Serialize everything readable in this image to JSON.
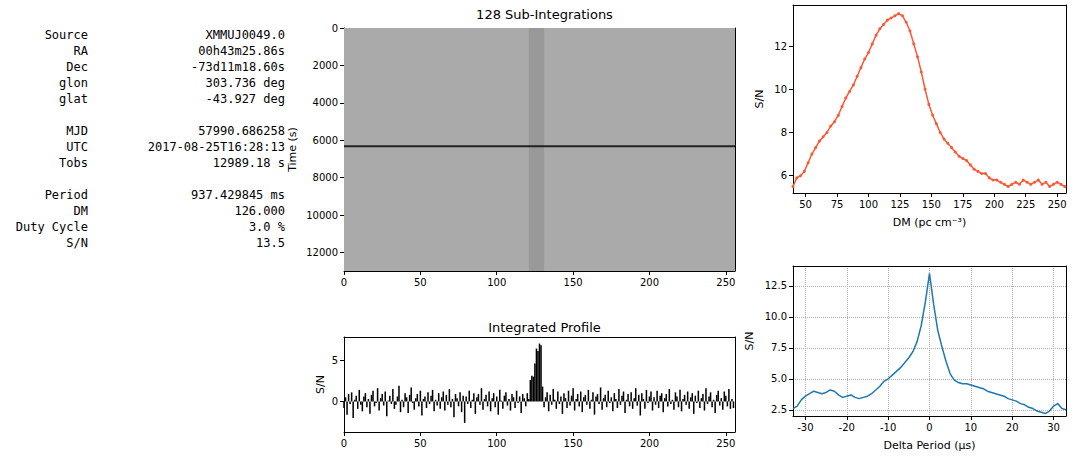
{
  "info": [
    [
      {
        "label": "Source",
        "value": "XMMUJ0049.0"
      },
      {
        "label": "RA",
        "value": "00h43m25.86s"
      },
      {
        "label": "Dec",
        "value": "-73d11m18.60s"
      },
      {
        "label": "glon",
        "value": "303.736 deg"
      },
      {
        "label": "glat",
        "value": "-43.927 deg"
      }
    ],
    [
      {
        "label": "MJD",
        "value": "57990.686258"
      },
      {
        "label": "UTC",
        "value": "2017-08-25T16:28:13"
      },
      {
        "label": "Tobs",
        "value": "12989.18 s"
      }
    ],
    [
      {
        "label": "Period",
        "value": "937.429845 ms"
      },
      {
        "label": "DM",
        "value": "126.000"
      },
      {
        "label": "Duty Cycle",
        "value": "3.0 %"
      },
      {
        "label": "S/N",
        "value": "13.5"
      }
    ]
  ],
  "chart_data": [
    {
      "type": "heatmap",
      "title": "128 Sub-Integrations",
      "y_label": "Time (s)",
      "xlim": [
        0,
        256
      ],
      "xticks": [
        0,
        50,
        100,
        150,
        200,
        250
      ],
      "ylim": [
        12989.18,
        0
      ],
      "yticks": [
        0,
        2000,
        4000,
        6000,
        8000,
        10000,
        12000
      ],
      "clim": [
        -2,
        4
      ],
      "cells": [
        {
          "x": [
            0,
            256
          ],
          "y": [
            0,
            12989.18
          ],
          "value": 0
        },
        {
          "x": [
            121,
            131
          ],
          "y": [
            0,
            12989.18
          ],
          "value": 0.4
        },
        {
          "x": [
            0,
            256
          ],
          "y": [
            6270,
            6370
          ],
          "value": 3.2
        }
      ],
      "grid": false
    },
    {
      "type": "bar",
      "title": "Integrated Profile",
      "y_label": "S/N",
      "x": [
        0,
        1,
        2,
        3,
        4,
        5,
        6,
        7,
        8,
        9,
        10,
        11,
        12,
        13,
        14,
        15,
        16,
        17,
        18,
        19,
        20,
        21,
        22,
        23,
        24,
        25,
        26,
        27,
        28,
        29,
        30,
        31,
        32,
        33,
        34,
        35,
        36,
        37,
        38,
        39,
        40,
        41,
        42,
        43,
        44,
        45,
        46,
        47,
        48,
        49,
        50,
        51,
        52,
        53,
        54,
        55,
        56,
        57,
        58,
        59,
        60,
        61,
        62,
        63,
        64,
        65,
        66,
        67,
        68,
        69,
        70,
        71,
        72,
        73,
        74,
        75,
        76,
        77,
        78,
        79,
        80,
        81,
        82,
        83,
        84,
        85,
        86,
        87,
        88,
        89,
        90,
        91,
        92,
        93,
        94,
        95,
        96,
        97,
        98,
        99,
        100,
        101,
        102,
        103,
        104,
        105,
        106,
        107,
        108,
        109,
        110,
        111,
        112,
        113,
        114,
        115,
        116,
        117,
        118,
        119,
        120,
        121,
        122,
        123,
        124,
        125,
        126,
        127,
        128,
        129,
        130,
        131,
        132,
        133,
        134,
        135,
        136,
        137,
        138,
        139,
        140,
        141,
        142,
        143,
        144,
        145,
        146,
        147,
        148,
        149,
        150,
        151,
        152,
        153,
        154,
        155,
        156,
        157,
        158,
        159,
        160,
        161,
        162,
        163,
        164,
        165,
        166,
        167,
        168,
        169,
        170,
        171,
        172,
        173,
        174,
        175,
        176,
        177,
        178,
        179,
        180,
        181,
        182,
        183,
        184,
        185,
        186,
        187,
        188,
        189,
        190,
        191,
        192,
        193,
        194,
        195,
        196,
        197,
        198,
        199,
        200,
        201,
        202,
        203,
        204,
        205,
        206,
        207,
        208,
        209,
        210,
        211,
        212,
        213,
        214,
        215,
        216,
        217,
        218,
        219,
        220,
        221,
        222,
        223,
        224,
        225,
        226,
        227,
        228,
        229,
        230,
        231,
        232,
        233,
        234,
        235,
        236,
        237,
        238,
        239,
        240,
        241,
        242,
        243,
        244,
        245,
        246,
        247,
        248,
        249,
        250,
        251,
        252,
        253,
        254,
        255
      ],
      "values": [
        -0.8,
        0.5,
        -1.6,
        0.9,
        -0.3,
        1.1,
        -2.0,
        0.2,
        0.7,
        -0.9,
        1.4,
        -0.4,
        -1.2,
        0.6,
        1.0,
        -0.7,
        0.3,
        -1.5,
        0.8,
        1.3,
        -0.6,
        -0.2,
        1.6,
        -1.1,
        0.4,
        0.9,
        -0.5,
        1.2,
        -1.8,
        0.1,
        0.7,
        -0.3,
        1.5,
        -0.9,
        -0.4,
        0.6,
        1.9,
        -1.3,
        0.2,
        -0.7,
        1.0,
        0.5,
        -1.4,
        0.8,
        1.7,
        -0.2,
        -1.0,
        0.4,
        0.9,
        -0.6,
        1.3,
        -1.7,
        0.3,
        0.6,
        -0.8,
        1.1,
        -0.3,
        0.7,
        1.4,
        -1.2,
        0.2,
        -0.5,
        1.0,
        -0.9,
        0.5,
        1.2,
        -1.1,
        0.8,
        -0.4,
        1.5,
        -0.7,
        0.3,
        -1.9,
        0.9,
        0.4,
        -0.6,
        1.1,
        -1.3,
        0.7,
        -2.6,
        0.6,
        -0.3,
        1.3,
        -0.8,
        0.2,
        1.0,
        -1.5,
        0.5,
        0.9,
        -0.4,
        1.6,
        -1.0,
        0.3,
        0.8,
        -0.6,
        1.2,
        -1.2,
        0.4,
        1.0,
        -0.7,
        0.6,
        -1.6,
        1.4,
        0.1,
        -0.9,
        0.7,
        1.1,
        -0.5,
        0.3,
        -1.1,
        0.9,
        0.5,
        -0.8,
        1.3,
        -0.2,
        0.6,
        -1.4,
        0.9,
        0.4,
        -0.6,
        1.0,
        0.3,
        2.6,
        3.1,
        3.0,
        4.6,
        6.4,
        6.1,
        7.0,
        6.8,
        1.8,
        -0.7,
        0.5,
        1.1,
        -1.2,
        0.8,
        -0.4,
        1.5,
        0.2,
        -0.9,
        1.2,
        -0.3,
        0.6,
        -1.5,
        1.0,
        0.4,
        -0.8,
        1.3,
        -0.5,
        0.7,
        1.6,
        -1.1,
        0.3,
        0.9,
        -0.6,
        1.2,
        -1.3,
        0.5,
        0.8,
        -0.4,
        1.4,
        -0.9,
        0.2,
        1.1,
        -1.6,
        0.6,
        0.9,
        -0.3,
        1.7,
        -1.0,
        0.4,
        0.8,
        -0.7,
        1.3,
        -0.2,
        0.5,
        -1.2,
        1.0,
        0.3,
        -0.8,
        1.5,
        -0.4,
        0.7,
        1.2,
        -1.4,
        0.2,
        0.9,
        -0.6,
        1.1,
        -0.9,
        0.4,
        1.6,
        -0.5,
        0.8,
        -1.7,
        1.0,
        0.3,
        -0.9,
        1.4,
        -0.2,
        0.6,
        1.2,
        -1.1,
        0.5,
        -0.4,
        1.3,
        -0.8,
        0.7,
        1.0,
        -1.3,
        0.4,
        0.9,
        -0.6,
        1.5,
        -0.3,
        0.2,
        -1.0,
        1.1,
        0.6,
        -0.7,
        1.4,
        -1.2,
        0.3,
        0.8,
        -0.4,
        1.2,
        -0.9,
        0.5,
        1.0,
        -1.5,
        0.7,
        -0.2,
        1.3,
        -0.8,
        0.4,
        0.9,
        -1.1,
        1.6,
        -0.3,
        0.6,
        1.1,
        -0.7,
        0.2,
        -1.4,
        0.8,
        1.3,
        -0.5,
        0.4,
        -1.0,
        1.2,
        0.7,
        -0.6,
        1.5,
        -0.9,
        0.3,
        -0.8
      ],
      "color": "#000000",
      "xlim": [
        0,
        256
      ],
      "xticks": [
        0,
        50,
        100,
        150,
        200,
        250
      ],
      "ylim": [
        -3.7,
        7.8
      ],
      "yticks": [
        0,
        5
      ],
      "grid": false
    },
    {
      "type": "line",
      "x_label": "DM (pc cm⁻³)",
      "y_label": "S/N",
      "x": [
        40,
        43,
        46,
        49,
        52,
        55,
        58,
        61,
        64,
        67,
        70,
        73,
        76,
        79,
        82,
        85,
        88,
        91,
        94,
        97,
        100,
        103,
        106,
        109,
        112,
        115,
        118,
        121,
        124,
        127,
        130,
        133,
        136,
        139,
        142,
        145,
        148,
        151,
        154,
        157,
        160,
        163,
        166,
        169,
        172,
        175,
        178,
        181,
        184,
        187,
        190,
        193,
        196,
        199,
        202,
        205,
        208,
        211,
        214,
        217,
        220,
        223,
        226,
        229,
        232,
        235,
        238,
        241,
        244,
        247,
        250,
        253,
        256
      ],
      "values": [
        5.5,
        5.9,
        6.0,
        6.2,
        6.6,
        7.0,
        7.3,
        7.6,
        7.8,
        8.0,
        8.3,
        8.5,
        8.8,
        9.2,
        9.6,
        9.9,
        10.2,
        10.6,
        11.0,
        11.4,
        11.7,
        12.1,
        12.5,
        12.8,
        13.0,
        13.2,
        13.3,
        13.4,
        13.5,
        13.4,
        13.1,
        12.7,
        12.1,
        11.5,
        10.8,
        10.0,
        9.3,
        8.8,
        8.4,
        8.0,
        7.7,
        7.5,
        7.3,
        7.1,
        6.9,
        6.8,
        6.7,
        6.5,
        6.3,
        6.2,
        6.1,
        6.1,
        5.9,
        5.8,
        5.8,
        5.7,
        5.6,
        5.5,
        5.6,
        5.7,
        5.6,
        5.8,
        5.7,
        5.6,
        5.7,
        5.8,
        5.6,
        5.7,
        5.5,
        5.6,
        5.7,
        5.6,
        5.5
      ],
      "color": "#ff5733",
      "marker": "circle",
      "line_style": "solid",
      "xlim": [
        40,
        257
      ],
      "xticks": [
        50,
        75,
        100,
        125,
        150,
        175,
        200,
        225,
        250
      ],
      "ylim": [
        5.2,
        13.9
      ],
      "yticks": [
        6,
        8,
        10,
        12
      ],
      "grid": false
    },
    {
      "type": "line",
      "x_label": "Delta Period (μs)",
      "y_label": "S/N",
      "x": [
        -33,
        -32,
        -31,
        -30,
        -29,
        -28,
        -27,
        -26,
        -25,
        -24,
        -23,
        -22,
        -21,
        -20,
        -19,
        -18,
        -17,
        -16,
        -15,
        -14,
        -13,
        -12,
        -11,
        -10,
        -9,
        -8,
        -7,
        -6,
        -5,
        -4,
        -3,
        -2,
        -1,
        0,
        1,
        2,
        3,
        4,
        5,
        6,
        7,
        8,
        9,
        10,
        11,
        12,
        13,
        14,
        15,
        16,
        17,
        18,
        19,
        20,
        21,
        22,
        23,
        24,
        25,
        26,
        27,
        28,
        29,
        30,
        31,
        32,
        33
      ],
      "values": [
        2.6,
        2.8,
        3.3,
        3.6,
        3.8,
        4.0,
        3.9,
        3.8,
        3.9,
        4.1,
        4.0,
        3.7,
        3.5,
        3.6,
        3.7,
        3.5,
        3.4,
        3.5,
        3.6,
        3.8,
        4.1,
        4.4,
        4.8,
        5.0,
        5.3,
        5.6,
        5.9,
        6.3,
        6.7,
        7.2,
        8.0,
        9.3,
        11.2,
        13.5,
        11.0,
        8.9,
        7.6,
        6.4,
        5.4,
        4.9,
        4.7,
        4.6,
        4.6,
        4.5,
        4.4,
        4.3,
        4.2,
        4.0,
        3.9,
        3.8,
        3.7,
        3.6,
        3.4,
        3.3,
        3.2,
        3.0,
        2.9,
        2.7,
        2.6,
        2.4,
        2.3,
        2.2,
        2.4,
        2.8,
        3.0,
        2.6,
        2.5
      ],
      "color": "#1f77b4",
      "marker": "none",
      "line_style": "solid",
      "xlim": [
        -33,
        33
      ],
      "xticks": [
        -30,
        -20,
        -10,
        0,
        10,
        20,
        30
      ],
      "ylim": [
        2.0,
        14.1
      ],
      "yticks": [
        2.5,
        {
          "value": 5,
          "label": "5.0"
        },
        7.5,
        {
          "value": 10,
          "label": "10.0"
        },
        12.5
      ],
      "grid": true
    }
  ]
}
